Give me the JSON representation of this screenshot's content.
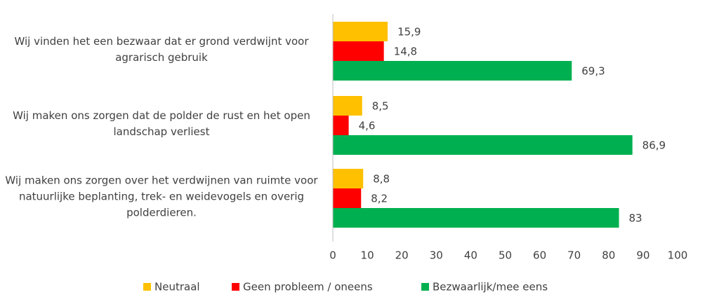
{
  "chart_data": {
    "type": "barh",
    "categories": [
      "Wij vinden het een bezwaar dat er grond verdwijnt voor agrarisch gebruik",
      "Wij maken ons zorgen dat de polder de rust en het open landschap verliest",
      "Wij maken ons zorgen over het verdwijnen van ruimte voor natuurlijke beplanting, trek- en weidevogels en overig polderdieren."
    ],
    "series": [
      {
        "name": "Neutraal",
        "color": "#FFC000",
        "values": [
          15.9,
          8.5,
          8.8
        ],
        "value_labels": [
          "15,9",
          "8,5",
          "8,8"
        ]
      },
      {
        "name": "Geen probleem / oneens",
        "color": "#FF0000",
        "values": [
          14.8,
          4.6,
          8.2
        ],
        "value_labels": [
          "14,8",
          "4,6",
          "8,2"
        ]
      },
      {
        "name": "Bezwaarlijk/mee eens",
        "color": "#00B050",
        "values": [
          69.3,
          86.9,
          83
        ],
        "value_labels": [
          "69,3",
          "86,9",
          "83"
        ]
      }
    ],
    "xlim": [
      0,
      100
    ],
    "xticks": [
      0,
      10,
      20,
      30,
      40,
      50,
      60,
      70,
      80,
      90,
      100
    ],
    "legend": "bottom"
  }
}
